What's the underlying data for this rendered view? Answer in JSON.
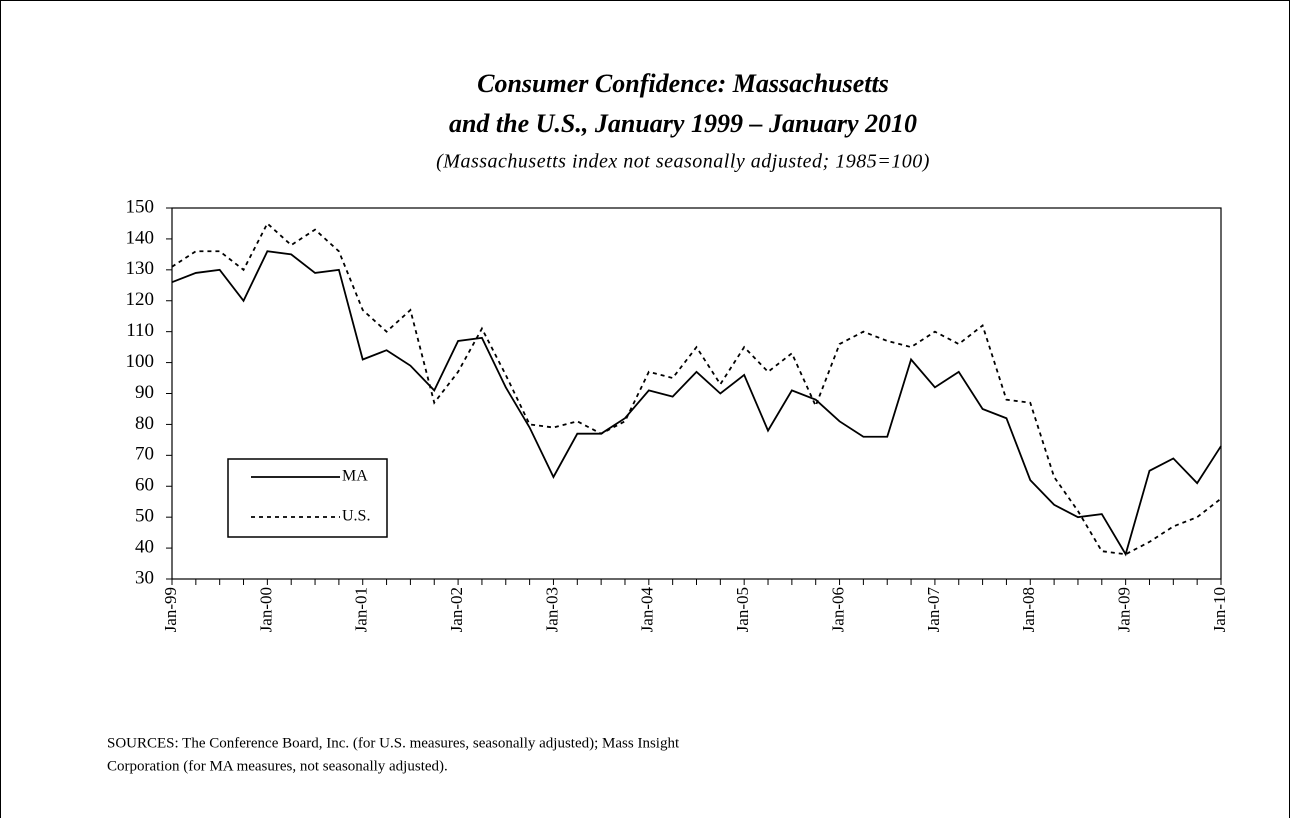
{
  "chart_data": {
    "type": "line",
    "title": [
      "Consumer Confidence: Massachusetts",
      "and the U.S., January 1999 – January 2010"
    ],
    "subtitle": "(Massachusetts index not seasonally adjusted; 1985=100)",
    "categories": [
      "Jan-99",
      null,
      null,
      null,
      "Jan-00",
      null,
      null,
      null,
      "Jan-01",
      null,
      null,
      null,
      "Jan-02",
      null,
      null,
      null,
      "Jan-03",
      null,
      null,
      null,
      "Jan-04",
      null,
      null,
      null,
      "Jan-05",
      null,
      null,
      null,
      "Jan-06",
      null,
      null,
      null,
      "Jan-07",
      null,
      null,
      null,
      "Jan-08",
      null,
      null,
      null,
      "Jan-09",
      null,
      null,
      null,
      "Jan-10"
    ],
    "series": [
      {
        "name": "MA",
        "color": "#000000",
        "line_style": "solid",
        "values": [
          126,
          129,
          130,
          120,
          136,
          135,
          129,
          130,
          101,
          104,
          99,
          91,
          107,
          108,
          92,
          79,
          63,
          77,
          77,
          82,
          91,
          89,
          97,
          90,
          96,
          78,
          91,
          88,
          81,
          76,
          76,
          101,
          92,
          97,
          85,
          82,
          62,
          54,
          50,
          51,
          38,
          65,
          69,
          61,
          73
        ]
      },
      {
        "name": "U.S.",
        "color": "#000000",
        "line_style": "dashed",
        "values": [
          131,
          136,
          136,
          130,
          145,
          138,
          143,
          136,
          117,
          110,
          117,
          87,
          97,
          111,
          96,
          80,
          79,
          81,
          77,
          81,
          97,
          95,
          105,
          93,
          105,
          97,
          103,
          86,
          106,
          110,
          107,
          105,
          110,
          106,
          112,
          88,
          87,
          63,
          52,
          39,
          38,
          42,
          47,
          50,
          56
        ]
      }
    ],
    "ylim": [
      30,
      150
    ],
    "yticks": [
      30,
      40,
      50,
      60,
      70,
      80,
      90,
      100,
      110,
      120,
      130,
      140,
      150
    ],
    "legend": "lower left",
    "note": [
      "SOURCES: The Conference Board, Inc. (for U.S. measures, seasonally adjusted); Mass Insight",
      "Corporation (for MA measures, not seasonally adjusted)."
    ]
  }
}
